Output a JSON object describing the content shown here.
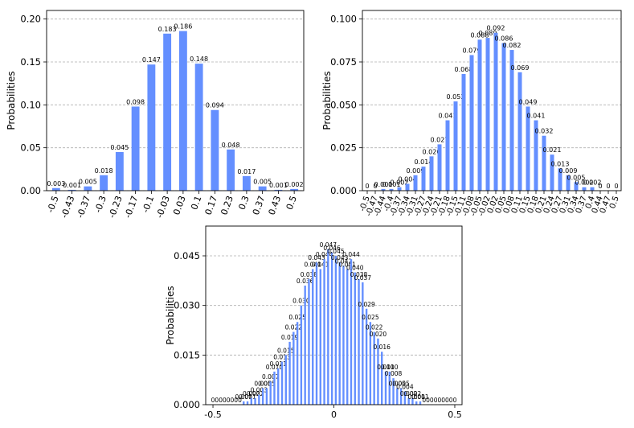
{
  "chart_data": [
    {
      "type": "bar",
      "ylabel": "Probabilities",
      "ylim": [
        0,
        0.21
      ],
      "yticks": [
        "0.00",
        "0.05",
        "0.10",
        "0.15",
        "0.20"
      ],
      "grid": true,
      "bar_color": "#648fff",
      "categories": [
        "-0.5",
        "-0.43",
        "-0.37",
        "-0.3",
        "-0.23",
        "-0.17",
        "-0.1",
        "-0.03",
        "0.03",
        "0.1",
        "0.17",
        "0.23",
        "0.3",
        "0.37",
        "0.43",
        "0.5"
      ],
      "values": [
        0.003,
        0.001,
        0.005,
        0.018,
        0.045,
        0.098,
        0.147,
        0.183,
        0.186,
        0.148,
        0.094,
        0.048,
        0.017,
        0.005,
        0.001,
        0.002
      ],
      "value_labels": [
        "0.003",
        "0.001",
        "0.005",
        "0.018",
        "0.045",
        "0.098",
        "0.147",
        "0.183",
        "0.186",
        "0.148",
        "0.094",
        "0.048",
        "0.017",
        "0.005",
        "0.001",
        "0.002"
      ]
    },
    {
      "type": "bar",
      "ylabel": "Probabilities",
      "ylim": [
        0,
        0.105
      ],
      "yticks": [
        "0.000",
        "0.025",
        "0.050",
        "0.075",
        "0.100"
      ],
      "grid": true,
      "bar_color": "#648fff",
      "categories": [
        "-0.5",
        "-0.47",
        "-0.44",
        "-0.4",
        "-0.37",
        "-0.34",
        "-0.31",
        "-0.27",
        "-0.24",
        "-0.21",
        "-0.18",
        "-0.15",
        "-0.11",
        "-0.08",
        "-0.05",
        "-0.02",
        "0.02",
        "0.05",
        "0.08",
        "0.11",
        "0.15",
        "0.18",
        "0.21",
        "0.24",
        "0.27",
        "0.31",
        "0.34",
        "0.37",
        "0.4",
        "0.44",
        "0.47",
        "0.5"
      ],
      "values": [
        0,
        0,
        0.001,
        0.001,
        0.002,
        0.004,
        0.009,
        0.014,
        0.02,
        0.027,
        0.041,
        0.052,
        0.068,
        0.079,
        0.088,
        0.089,
        0.092,
        0.086,
        0.082,
        0.069,
        0.049,
        0.041,
        0.032,
        0.021,
        0.013,
        0.009,
        0.005,
        0.002,
        0.002,
        0,
        0,
        0
      ],
      "value_labels": [
        "0",
        "0",
        "0.001",
        "0.001",
        "0.002",
        "0.004",
        "0.009",
        "0.014",
        "0.020",
        "0.027",
        "0.041",
        "0.052",
        "0.068",
        "0.079",
        "0.088",
        "0.089",
        "0.092",
        "0.086",
        "0.082",
        "0.069",
        "0.049",
        "0.041",
        "0.032",
        "0.021",
        "0.013",
        "0.009",
        "0.005",
        "0.002",
        "0.002",
        "0",
        "0",
        "0"
      ]
    },
    {
      "type": "bar",
      "ylabel": "Probabilities",
      "ylim": [
        0,
        0.054
      ],
      "yticks": [
        "0.000",
        "0.015",
        "0.030",
        "0.045"
      ],
      "xlim": [
        -0.53,
        0.53
      ],
      "xticks": [
        "-0.5",
        "0",
        "0.5"
      ],
      "grid": true,
      "bar_color": "#648fff",
      "x_start": -0.5,
      "x_end": 0.5,
      "values": [
        0,
        0,
        0,
        0,
        0,
        0,
        0,
        0,
        0.001,
        0.001,
        0.002,
        0.002,
        0.003,
        0.005,
        0.005,
        0.007,
        0.01,
        0.011,
        0.013,
        0.015,
        0.019,
        0.022,
        0.025,
        0.03,
        0.036,
        0.038,
        0.041,
        0.043,
        0.041,
        0.044,
        0.047,
        0.046,
        0.045,
        0.043,
        0.042,
        0.041,
        0.044,
        0.04,
        0.038,
        0.037,
        0.029,
        0.025,
        0.022,
        0.02,
        0.016,
        0.01,
        0.01,
        0.008,
        0.005,
        0.005,
        0.004,
        0.002,
        0.002,
        0.001,
        0.001,
        0,
        0,
        0,
        0,
        0,
        0,
        0,
        0,
        0
      ],
      "value_labels": [
        "0",
        "0",
        "0",
        "0",
        "0",
        "0",
        "0",
        "0",
        "0.001",
        "0.001",
        "0.002",
        "0.002",
        "0.003",
        "0.005",
        "0.005",
        "0.007",
        "0.010",
        "0.011",
        "0.013",
        "0.015",
        "0.019",
        "0.022",
        "0.025",
        "0.030",
        "0.036",
        "0.038",
        "0.041",
        "0.043",
        "0.041",
        "0.044",
        "0.047",
        "0.046",
        "0.045",
        "0.043",
        "0.042",
        "0.041",
        "0.044",
        "0.040",
        "0.038",
        "0.037",
        "0.029",
        "0.025",
        "0.022",
        "0.020",
        "0.016",
        "0.010",
        "0.010",
        "0.008",
        "0.005",
        "0.005",
        "0.004",
        "0.002",
        "0.002",
        "0.001",
        "0.001",
        "0",
        "0",
        "0",
        "0",
        "0",
        "0",
        "0",
        "0",
        "0"
      ]
    }
  ]
}
